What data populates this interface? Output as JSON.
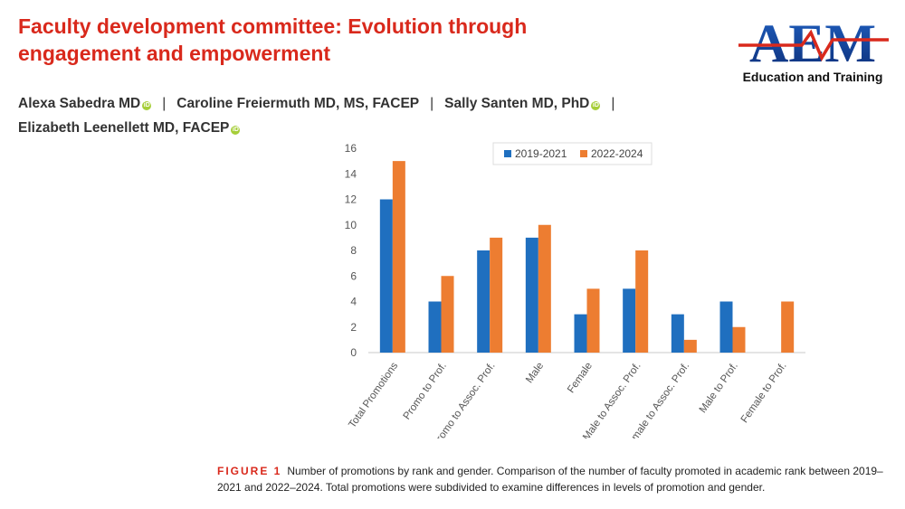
{
  "header": {
    "title_line1": "Faculty development committee: Evolution through",
    "title_line2": "engagement and empowerment"
  },
  "logo": {
    "letters": "AEM",
    "subtitle": "Education and Training"
  },
  "authors": {
    "line1": [
      {
        "name": "Alexa Sabedra MD",
        "orcid": true
      },
      {
        "name": "Caroline Freiermuth MD, MS, FACEP",
        "orcid": false
      },
      {
        "name": "Sally Santen MD, PhD",
        "orcid": true
      }
    ],
    "line2": [
      {
        "name": "Elizabeth Leenellett MD, FACEP",
        "orcid": true
      }
    ],
    "separator": "|"
  },
  "colors": {
    "title": "#d9291c",
    "series1": "#1f6fbf",
    "series2": "#ed7d31",
    "orcid": "#a6ce39"
  },
  "chart_data": {
    "type": "bar",
    "title": "",
    "xlabel": "",
    "ylabel": "",
    "ylim": [
      0,
      16
    ],
    "yticks": [
      0,
      2,
      4,
      6,
      8,
      10,
      12,
      14,
      16
    ],
    "grid": false,
    "legend_position": "top-right",
    "categories": [
      "Total Promotions",
      "Promo to Prof.",
      "Promo to Assoc. Prof.",
      "Male",
      "Female",
      "Male to Assoc. Prof.",
      "Female to Assoc. Prof.",
      "Male to Prof.",
      "Female to Prof."
    ],
    "series": [
      {
        "name": "2019-2021",
        "values": [
          12,
          4,
          8,
          9,
          3,
          5,
          3,
          4,
          0
        ]
      },
      {
        "name": "2022-2024",
        "values": [
          15,
          6,
          9,
          10,
          5,
          8,
          1,
          2,
          4
        ]
      }
    ]
  },
  "caption": {
    "label": "FIGURE 1",
    "text": "Number of promotions by rank and gender. Comparison of the number of faculty promoted in academic rank between 2019–2021 and 2022–2024. Total promotions were subdivided to examine differences in levels of promotion and gender."
  }
}
